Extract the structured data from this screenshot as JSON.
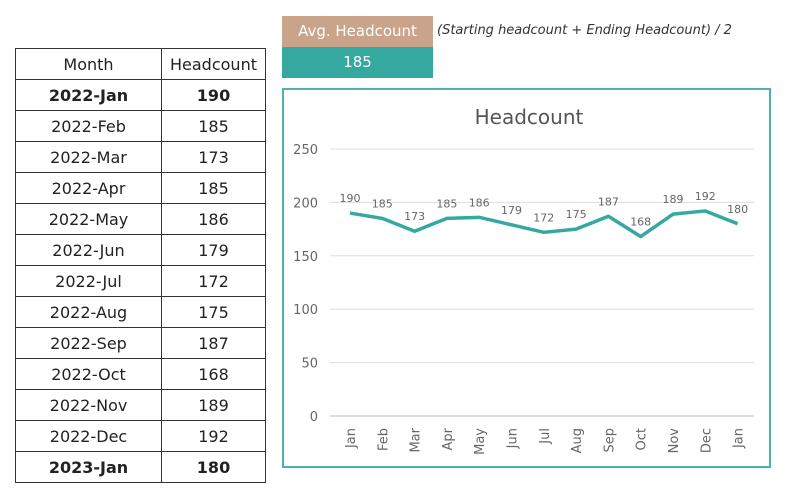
{
  "table": {
    "headers": [
      "Month",
      "Headcount"
    ],
    "rows": [
      [
        "2022-Jan",
        "190"
      ],
      [
        "2022-Feb",
        "185"
      ],
      [
        "2022-Mar",
        "173"
      ],
      [
        "2022-Apr",
        "185"
      ],
      [
        "2022-May",
        "186"
      ],
      [
        "2022-Jun",
        "179"
      ],
      [
        "2022-Jul",
        "172"
      ],
      [
        "2022-Aug",
        "175"
      ],
      [
        "2022-Sep",
        "187"
      ],
      [
        "2022-Oct",
        "168"
      ],
      [
        "2022-Nov",
        "189"
      ],
      [
        "2022-Dec",
        "192"
      ],
      [
        "2023-Jan",
        "180"
      ]
    ]
  },
  "summary": {
    "label": "Avg. Headcount",
    "value": "185",
    "formula": "(Starting headcount + Ending Headcount) / 2"
  },
  "colors": {
    "line": "#35a8a0",
    "label_bg": "#c9a48b",
    "value_bg": "#35a8a0",
    "border": "#4db3aa"
  },
  "chart_data": {
    "type": "line",
    "title": "Headcount",
    "categories": [
      "Jan",
      "Feb",
      "Mar",
      "Apr",
      "May",
      "Jun",
      "Jul",
      "Aug",
      "Sep",
      "Oct",
      "Nov",
      "Dec",
      "Jan"
    ],
    "values": [
      190,
      185,
      173,
      185,
      186,
      179,
      172,
      175,
      187,
      168,
      189,
      192,
      180
    ],
    "ylim": [
      0,
      250
    ],
    "yticks": [
      0,
      50,
      100,
      150,
      200,
      250
    ],
    "grid": true,
    "data_labels": true,
    "xlabel": "",
    "ylabel": ""
  }
}
